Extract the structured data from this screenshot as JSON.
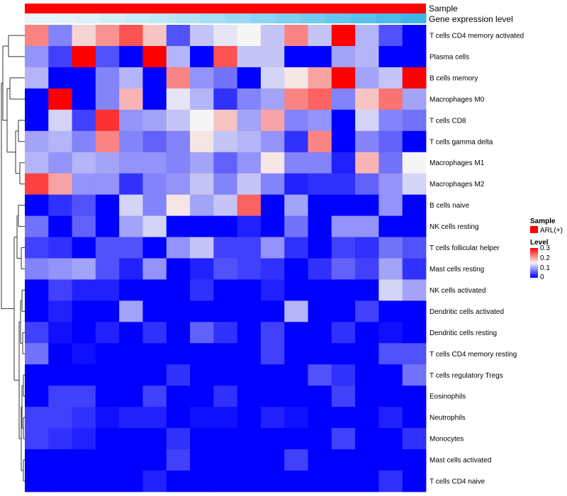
{
  "chart_data": {
    "type": "heatmap",
    "annotation_bars": [
      {
        "label": "Sample"
      },
      {
        "label": "Gene expression level"
      }
    ],
    "sample_color": "#ff0000",
    "gene_expression_colors": [
      "#e8f6fb",
      "#e4f4fb",
      "#dcf1fa",
      "#d2eef9",
      "#c8ebf8",
      "#bde7f7",
      "#b2e3f6",
      "#a6def5",
      "#99d9f3",
      "#8cd4f2",
      "#7fcff0",
      "#72caee",
      "#65c5ed",
      "#58c0eb",
      "#4cbbea",
      "#3fb6e8"
    ],
    "rows": [
      "T cells CD4 memory activated",
      "Plasma cells",
      "B cells memory",
      "Macrophages M0",
      "T cells CD8",
      "T cells gamma delta",
      "Macrophages M1",
      "Macrophages M2",
      "B cells naive",
      "NK cells resting",
      "T cells follicular helper",
      "Mast cells resting",
      "NK cells activated",
      "Dendritic cells activated",
      "Dendritic cells resting",
      "T cells CD4 memory resting",
      "T cells regulatory  Tregs",
      "Eosinophils",
      "Neutrophils",
      "Monocytes",
      "Mast cells activated",
      "T cells CD4 naive"
    ],
    "values": [
      [
        0.22,
        0.08,
        0.17,
        0.21,
        0.25,
        0.18,
        0.05,
        0.12,
        0.14,
        0.15,
        0.12,
        0.22,
        0.12,
        0.3,
        0.11,
        0.05,
        0.0
      ],
      [
        0.09,
        0.04,
        0.3,
        0.05,
        0.0,
        0.3,
        0.11,
        0.0,
        0.25,
        0.12,
        0.12,
        0.0,
        0.0,
        0.1,
        0.11,
        0.0,
        0.0
      ],
      [
        0.11,
        0.0,
        0.0,
        0.08,
        0.11,
        0.0,
        0.22,
        0.09,
        0.07,
        0.0,
        0.13,
        0.16,
        0.2,
        0.3,
        0.1,
        0.12,
        0.3
      ],
      [
        0.0,
        0.3,
        0.0,
        0.08,
        0.19,
        0.0,
        0.14,
        0.11,
        0.03,
        0.08,
        0.1,
        0.22,
        0.24,
        0.08,
        0.18,
        0.23,
        0.1
      ],
      [
        0.0,
        0.13,
        0.04,
        0.27,
        0.09,
        0.1,
        0.12,
        0.15,
        0.18,
        0.1,
        0.2,
        0.08,
        0.09,
        0.0,
        0.13,
        0.08,
        0.07
      ],
      [
        0.1,
        0.11,
        0.08,
        0.22,
        0.08,
        0.06,
        0.08,
        0.16,
        0.12,
        0.11,
        0.09,
        0.03,
        0.22,
        0.0,
        0.08,
        0.06,
        0.0
      ],
      [
        0.11,
        0.09,
        0.11,
        0.1,
        0.09,
        0.09,
        0.08,
        0.1,
        0.06,
        0.09,
        0.16,
        0.08,
        0.08,
        0.02,
        0.19,
        0.07,
        0.15
      ],
      [
        0.26,
        0.2,
        0.09,
        0.09,
        0.03,
        0.08,
        0.09,
        0.12,
        0.08,
        0.12,
        0.08,
        0.02,
        0.03,
        0.03,
        0.06,
        0.09,
        0.13
      ],
      [
        0.0,
        0.03,
        0.05,
        0.0,
        0.13,
        0.08,
        0.16,
        0.1,
        0.12,
        0.24,
        0.0,
        0.1,
        0.0,
        0.0,
        0.0,
        0.09,
        0.0
      ],
      [
        0.07,
        0.0,
        0.06,
        0.0,
        0.1,
        0.13,
        0.0,
        0.0,
        0.0,
        0.02,
        0.0,
        0.07,
        0.0,
        0.09,
        0.09,
        0.0,
        0.0
      ],
      [
        0.04,
        0.03,
        0.0,
        0.05,
        0.05,
        0.0,
        0.09,
        0.12,
        0.04,
        0.04,
        0.09,
        0.03,
        0.0,
        0.04,
        0.03,
        0.07,
        0.05
      ],
      [
        0.08,
        0.09,
        0.1,
        0.05,
        0.02,
        0.09,
        0.0,
        0.02,
        0.05,
        0.04,
        0.03,
        0.0,
        0.03,
        0.06,
        0.04,
        0.1,
        0.03
      ],
      [
        0.0,
        0.04,
        0.02,
        0.02,
        0.0,
        0.0,
        0.0,
        0.03,
        0.0,
        0.0,
        0.02,
        0.0,
        0.0,
        0.0,
        0.0,
        0.13,
        0.1
      ],
      [
        0.0,
        0.02,
        0.0,
        0.0,
        0.1,
        0.0,
        0.0,
        0.0,
        0.0,
        0.0,
        0.0,
        0.11,
        0.0,
        0.0,
        0.04,
        0.0,
        0.0
      ],
      [
        0.04,
        0.01,
        0.0,
        0.02,
        0.0,
        0.03,
        0.0,
        0.06,
        0.03,
        0.0,
        0.04,
        0.0,
        0.0,
        0.03,
        0.0,
        0.01,
        0.0
      ],
      [
        0.07,
        0.0,
        0.01,
        0.0,
        0.0,
        0.0,
        0.0,
        0.0,
        0.0,
        0.0,
        0.04,
        0.0,
        0.0,
        0.0,
        0.0,
        0.05,
        0.05
      ],
      [
        0.0,
        0.0,
        0.0,
        0.0,
        0.0,
        0.0,
        0.03,
        0.0,
        0.0,
        0.0,
        0.0,
        0.0,
        0.05,
        0.03,
        0.0,
        0.0,
        0.07
      ],
      [
        0.0,
        0.04,
        0.04,
        0.0,
        0.0,
        0.04,
        0.0,
        0.0,
        0.03,
        0.0,
        0.0,
        0.0,
        0.0,
        0.04,
        0.0,
        0.0,
        0.0
      ],
      [
        0.04,
        0.04,
        0.03,
        0.01,
        0.02,
        0.02,
        0.0,
        0.01,
        0.01,
        0.0,
        0.02,
        0.01,
        0.0,
        0.0,
        0.0,
        0.02,
        0.0
      ],
      [
        0.04,
        0.03,
        0.02,
        0.0,
        0.0,
        0.0,
        0.03,
        0.0,
        0.0,
        0.0,
        0.0,
        0.0,
        0.0,
        0.04,
        0.0,
        0.0,
        0.03
      ],
      [
        0.0,
        0.0,
        0.0,
        0.0,
        0.0,
        0.0,
        0.04,
        0.0,
        0.0,
        0.0,
        0.0,
        0.04,
        0.0,
        0.0,
        0.0,
        0.0,
        0.0
      ],
      [
        0.0,
        0.0,
        0.0,
        0.0,
        0.0,
        0.02,
        0.0,
        0.0,
        0.0,
        0.0,
        0.0,
        0.0,
        0.0,
        0.0,
        0.0,
        0.03,
        0.0
      ]
    ],
    "color_scale": {
      "min": 0,
      "mid": 0.15,
      "max": 0.3,
      "colors": [
        "#0000ff",
        "#f5f5f5",
        "#ff0000"
      ]
    },
    "legend": {
      "sample_title": "Sample",
      "sample_entry": "ARL(+)",
      "level_title": "Level",
      "level_ticks": [
        "0.3",
        "0.2",
        "0.1",
        "0"
      ]
    }
  }
}
